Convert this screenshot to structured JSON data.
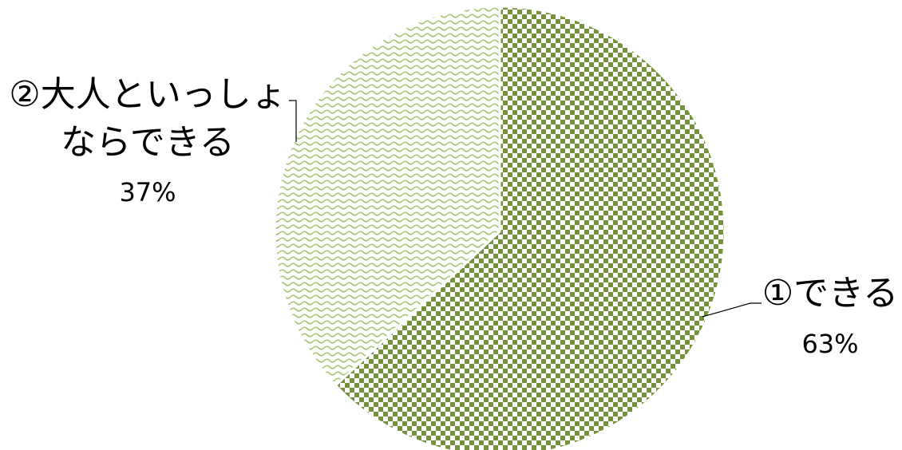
{
  "chart_data": {
    "type": "pie",
    "title": "",
    "start_angle_deg": 0,
    "direction": "clockwise",
    "legend": "none",
    "series": [
      {
        "values": [
          63,
          37
        ],
        "categories": [
          "①できる",
          "②大人といっしょならできる"
        ],
        "labels": [
          {
            "lines": [
              "①できる"
            ],
            "percent": "63%"
          },
          {
            "lines": [
              "②大人といっしょ",
              "ならできる"
            ],
            "percent": "37%"
          }
        ]
      }
    ],
    "slice_colors": [
      "#76923c",
      "#c3d69b"
    ],
    "slice_patterns": [
      "checker",
      "wave"
    ]
  }
}
